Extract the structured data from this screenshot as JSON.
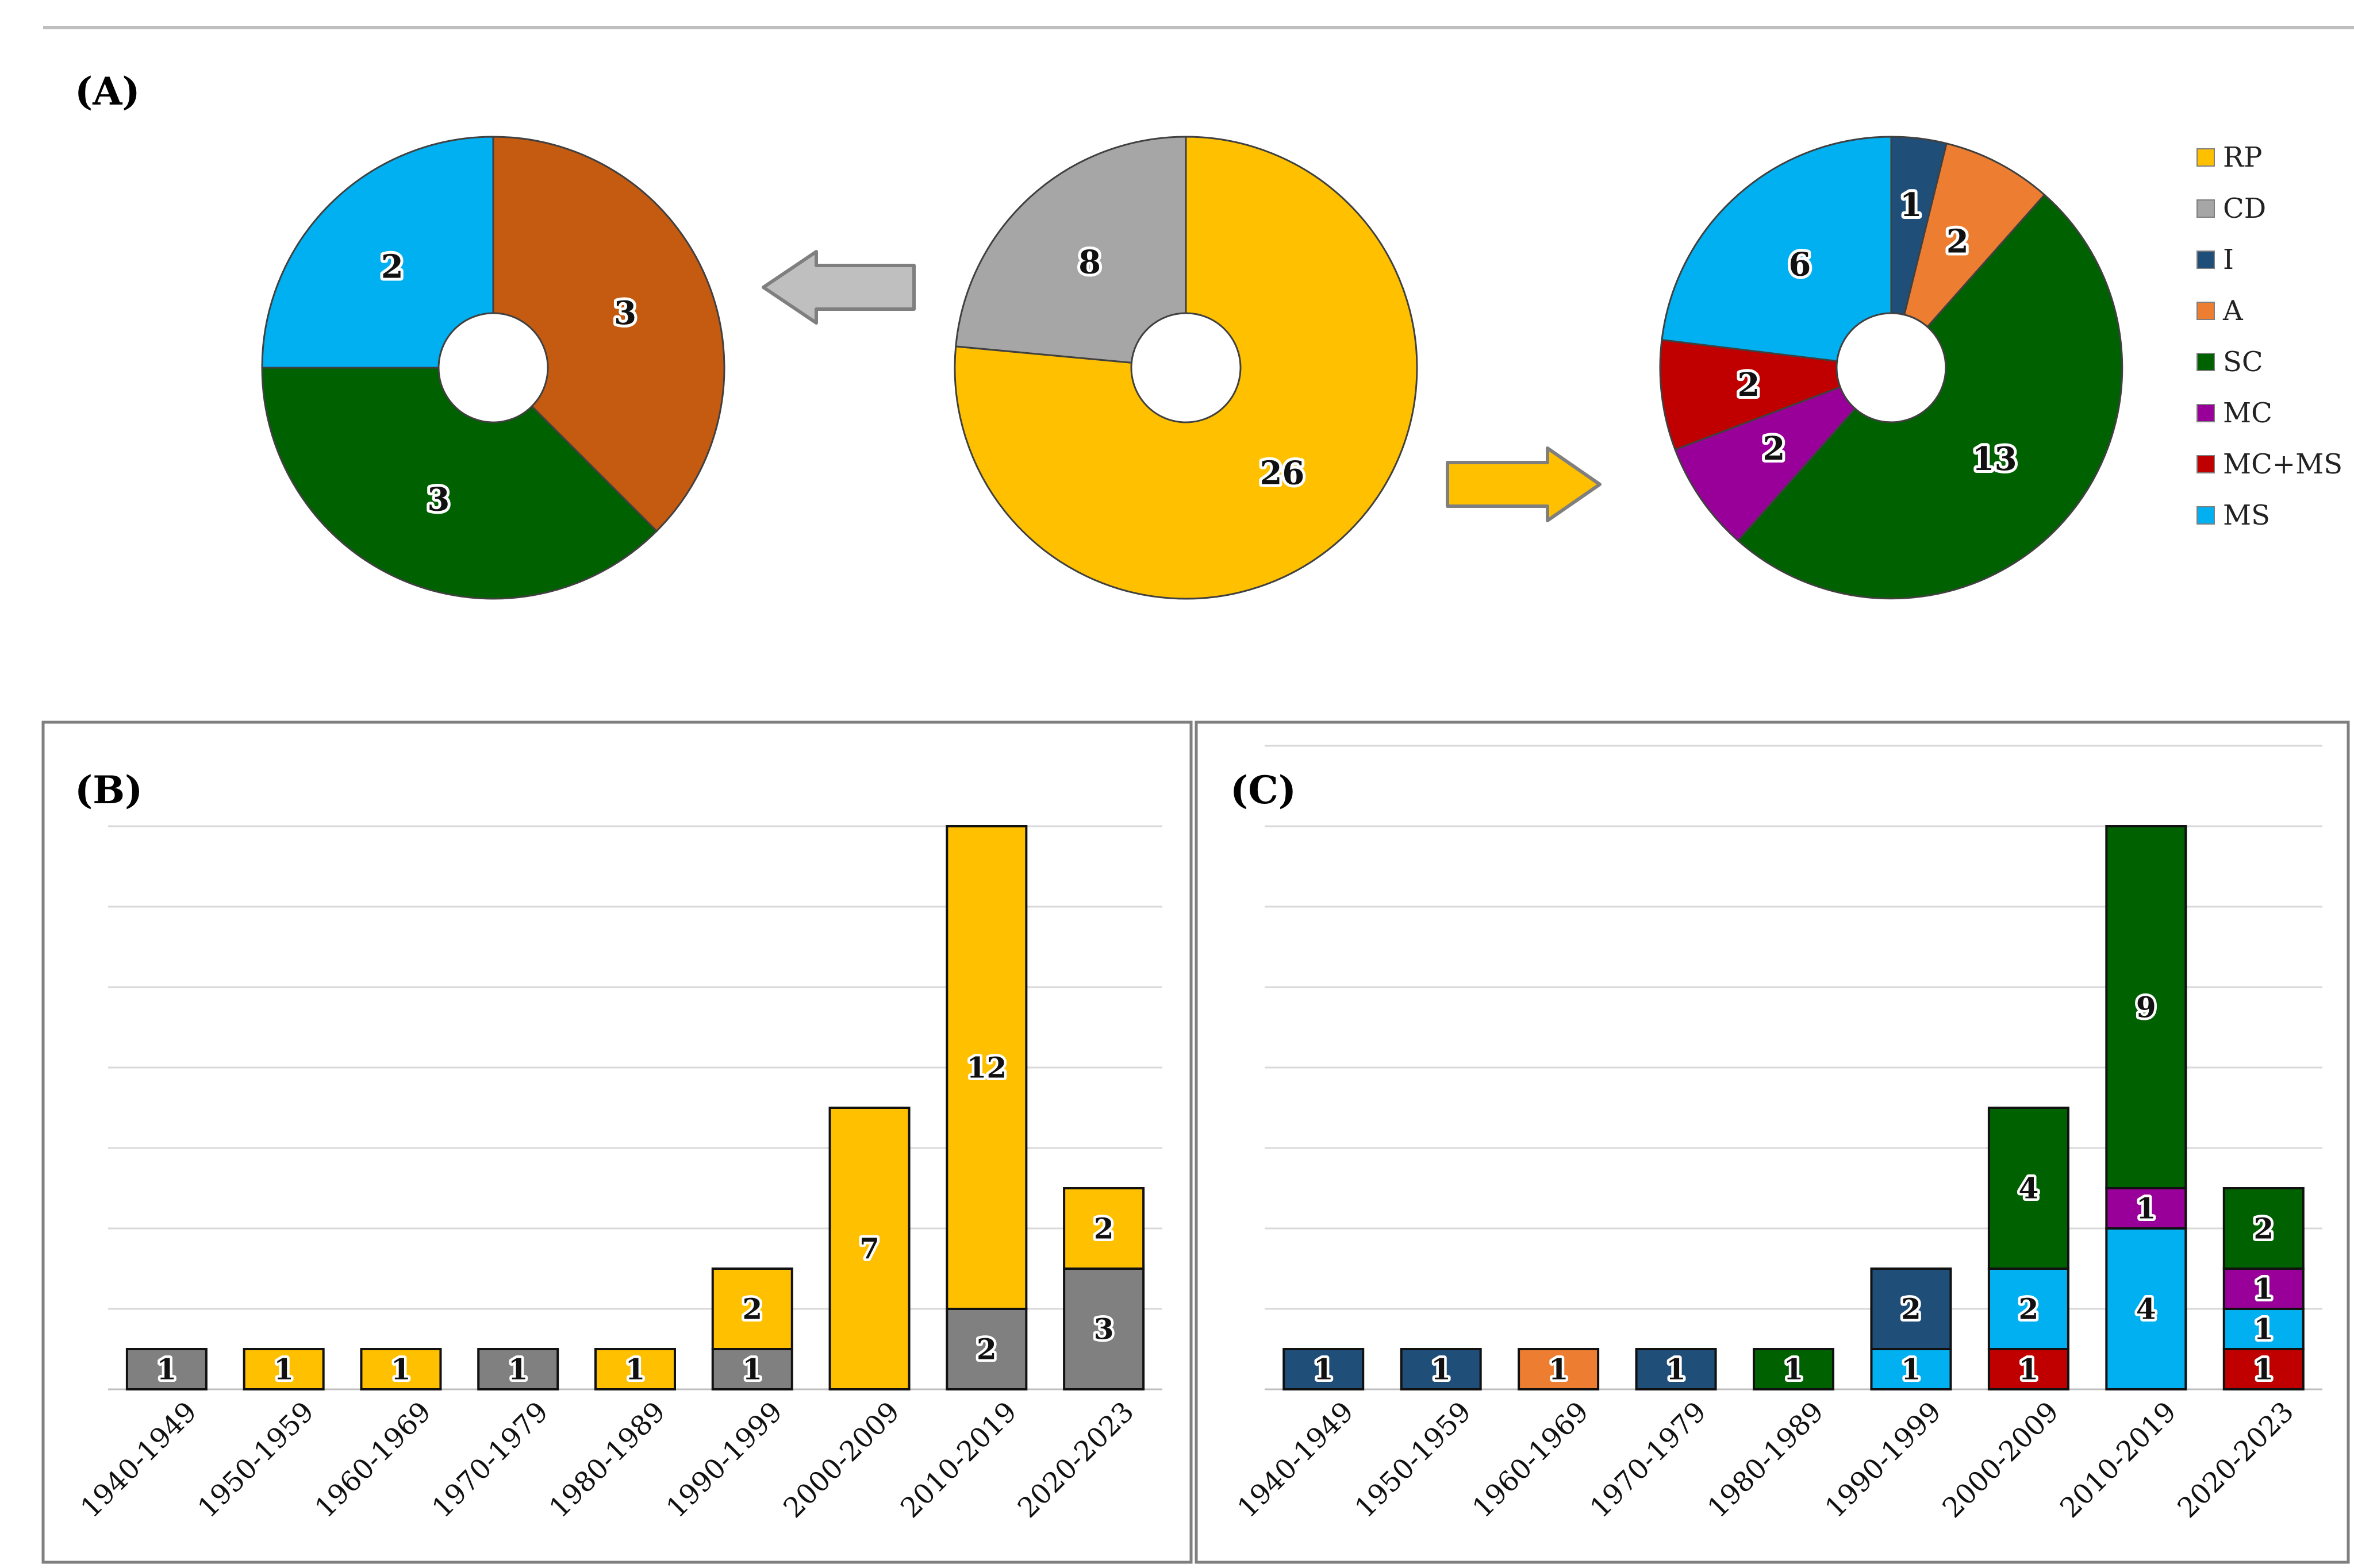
{
  "panels": {
    "a": "(A)",
    "b": "(B)",
    "c": "(C)"
  },
  "colors": {
    "RP": "#FFC000",
    "CD": "#A6A6A6",
    "CD_bar": "#808080",
    "I": "#1F4E79",
    "A": "#ED7D31",
    "SC": "#006100",
    "MC": "#990099",
    "MC+MS": "#C00000",
    "MS": "#00B0F0",
    "brown": "#C55A11"
  },
  "legend": [
    "RP",
    "CD",
    "I",
    "A",
    "SC",
    "MC",
    "MC+MS",
    "MS"
  ],
  "chart_data": [
    {
      "id": "center-donut",
      "type": "pie",
      "title": "",
      "slices": [
        {
          "label": "RP",
          "value": 26,
          "color": "#FFC000"
        },
        {
          "label": "CD",
          "value": 8,
          "color": "#A6A6A6"
        }
      ]
    },
    {
      "id": "left-donut",
      "type": "pie",
      "title": "",
      "slices": [
        {
          "label": "",
          "value": 3,
          "color": "#C55A11"
        },
        {
          "label": "",
          "value": 3,
          "color": "#006100"
        },
        {
          "label": "",
          "value": 2,
          "color": "#00B0F0"
        }
      ]
    },
    {
      "id": "right-donut",
      "type": "pie",
      "title": "",
      "slices": [
        {
          "label": "I",
          "value": 1,
          "color": "#1F4E79"
        },
        {
          "label": "A",
          "value": 2,
          "color": "#ED7D31"
        },
        {
          "label": "SC",
          "value": 13,
          "color": "#006100"
        },
        {
          "label": "MC",
          "value": 2,
          "color": "#990099"
        },
        {
          "label": "MC+MS",
          "value": 2,
          "color": "#C00000"
        },
        {
          "label": "MS",
          "value": 6,
          "color": "#00B0F0"
        }
      ]
    },
    {
      "id": "bar-b",
      "type": "bar",
      "stacked": true,
      "title": "(B)",
      "xlabel": "",
      "ylabel": "",
      "ylim": [
        0,
        14
      ],
      "categories": [
        "1940-1949",
        "1950-1959",
        "1960-1969",
        "1970-1979",
        "1980-1989",
        "1990-1999",
        "2000-2009",
        "2010-2019",
        "2020-2023"
      ],
      "series": [
        {
          "name": "CD",
          "color": "#808080",
          "values": [
            1,
            0,
            0,
            1,
            0,
            1,
            0,
            2,
            3
          ]
        },
        {
          "name": "RP",
          "color": "#FFC000",
          "values": [
            0,
            1,
            1,
            0,
            1,
            2,
            7,
            12,
            2
          ]
        }
      ]
    },
    {
      "id": "bar-c",
      "type": "bar",
      "stacked": true,
      "title": "(C)",
      "xlabel": "",
      "ylabel": "",
      "ylim": [
        0,
        16
      ],
      "categories": [
        "1940-1949",
        "1950-1959",
        "1960-1969",
        "1970-1979",
        "1980-1989",
        "1990-1999",
        "2000-2009",
        "2010-2019",
        "2020-2023"
      ],
      "series": [
        {
          "name": "MC+MS",
          "color": "#C00000",
          "values": [
            0,
            0,
            0,
            0,
            0,
            0,
            1,
            0,
            1
          ]
        },
        {
          "name": "MS",
          "color": "#00B0F0",
          "values": [
            0,
            0,
            0,
            0,
            0,
            1,
            2,
            4,
            1
          ]
        },
        {
          "name": "I",
          "color": "#1F4E79",
          "values": [
            1,
            1,
            0,
            1,
            0,
            2,
            0,
            0,
            0
          ]
        },
        {
          "name": "A",
          "color": "#ED7D31",
          "values": [
            0,
            0,
            1,
            0,
            0,
            0,
            0,
            0,
            0
          ]
        },
        {
          "name": "MC",
          "color": "#990099",
          "values": [
            0,
            0,
            0,
            0,
            0,
            0,
            0,
            1,
            1
          ]
        },
        {
          "name": "SC",
          "color": "#006100",
          "values": [
            0,
            0,
            0,
            0,
            1,
            0,
            4,
            9,
            2
          ]
        }
      ]
    }
  ]
}
